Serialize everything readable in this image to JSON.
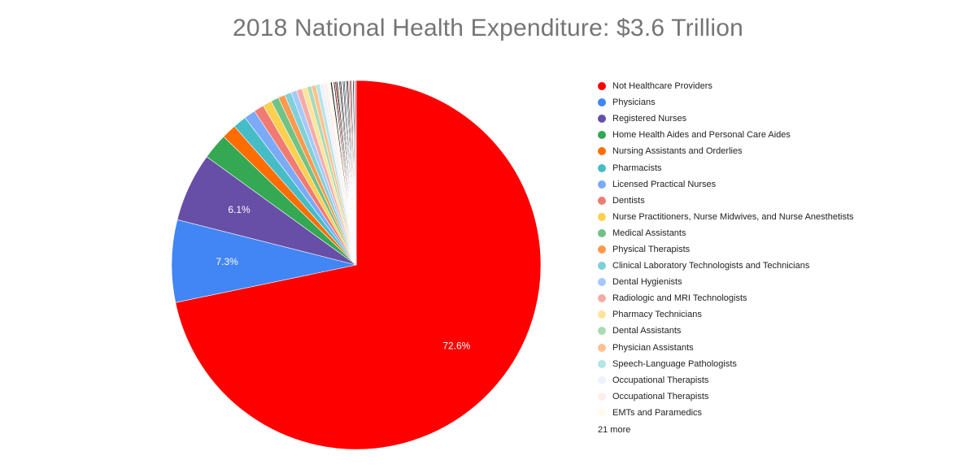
{
  "chart_data": {
    "type": "pie",
    "title": "2018 National Health Expenditure: $3.6 Trillion",
    "slices": [
      {
        "label": "Not Healthcare Providers",
        "value": 72.6,
        "color": "#ff0000",
        "value_label": "72.6%"
      },
      {
        "label": "Physicians",
        "value": 7.3,
        "color": "#4285f4",
        "value_label": "7.3%"
      },
      {
        "label": "Registered Nurses",
        "value": 6.1,
        "color": "#674ea7",
        "value_label": "6.1%"
      },
      {
        "label": "Home Health Aides and Personal Care Aides",
        "value": 2.3,
        "color": "#34a853"
      },
      {
        "label": "Nursing Assistants and Orderlies",
        "value": 1.3,
        "color": "#ff6d00"
      },
      {
        "label": "Pharmacists",
        "value": 1.2,
        "color": "#46bdc6"
      },
      {
        "label": "Licensed Practical Nurses",
        "value": 1.0,
        "color": "#7baaf7"
      },
      {
        "label": "Dentists",
        "value": 0.9,
        "color": "#f07b72"
      },
      {
        "label": "Nurse Practitioners, Nurse Midwives, and Nurse Anesthetists",
        "value": 0.8,
        "color": "#fcd04f"
      },
      {
        "label": "Medical Assistants",
        "value": 0.7,
        "color": "#71c287"
      },
      {
        "label": "Physical Therapists",
        "value": 0.6,
        "color": "#ff994d"
      },
      {
        "label": "Clinical Laboratory Technologists and Technicians",
        "value": 0.6,
        "color": "#7ed1d7"
      },
      {
        "label": "Dental Hygienists",
        "value": 0.5,
        "color": "#a7c8fa"
      },
      {
        "label": "Radiologic and MRI Technologists",
        "value": 0.5,
        "color": "#f5aca7"
      },
      {
        "label": "Pharmacy Technicians",
        "value": 0.45,
        "color": "#fde49a"
      },
      {
        "label": "Dental Assistants",
        "value": 0.4,
        "color": "#a9dbb5"
      },
      {
        "label": "Physician Assistants",
        "value": 0.4,
        "color": "#ffc08f"
      },
      {
        "label": "Speech-Language Pathologists",
        "value": 0.35,
        "color": "#b2e4e8"
      },
      {
        "label": "Occupational Therapists",
        "value": 0.35,
        "color": "#eef2fd"
      },
      {
        "label": "Occupational Therapists",
        "value": 0.3,
        "color": "#fdeeed"
      },
      {
        "label": "EMTs and Paramedics",
        "value": 0.3,
        "color": "#fffaeb"
      }
    ],
    "other_slices": [
      {
        "value": 0.14,
        "color": "#222222"
      },
      {
        "value": 0.12,
        "color": "#ffffff"
      },
      {
        "value": 0.12,
        "color": "#3c3c3c"
      },
      {
        "value": 0.12,
        "color": "#c0392b"
      },
      {
        "value": 0.12,
        "color": "#1a1a1a"
      },
      {
        "value": 0.11,
        "color": "#e0e0e0"
      },
      {
        "value": 0.11,
        "color": "#555555"
      },
      {
        "value": 0.11,
        "color": "#0b0b0b"
      },
      {
        "value": 0.11,
        "color": "#f5f5f5"
      },
      {
        "value": 0.1,
        "color": "#333333"
      },
      {
        "value": 0.1,
        "color": "#2c3e50"
      },
      {
        "value": 0.1,
        "color": "#d9d9d9"
      },
      {
        "value": 0.1,
        "color": "#444444"
      },
      {
        "value": 0.1,
        "color": "#111111"
      },
      {
        "value": 0.1,
        "color": "#bdbdbd"
      },
      {
        "value": 0.1,
        "color": "#e53935"
      },
      {
        "value": 0.1,
        "color": "#2b2b2b"
      },
      {
        "value": 0.1,
        "color": "#ffffff"
      },
      {
        "value": 0.1,
        "color": "#1e1e1e"
      },
      {
        "value": 0.1,
        "color": "#9e9e9e"
      },
      {
        "value": 0.1,
        "color": "#e84a5f"
      }
    ],
    "legend_more": "21 more",
    "legend_position": "right"
  }
}
